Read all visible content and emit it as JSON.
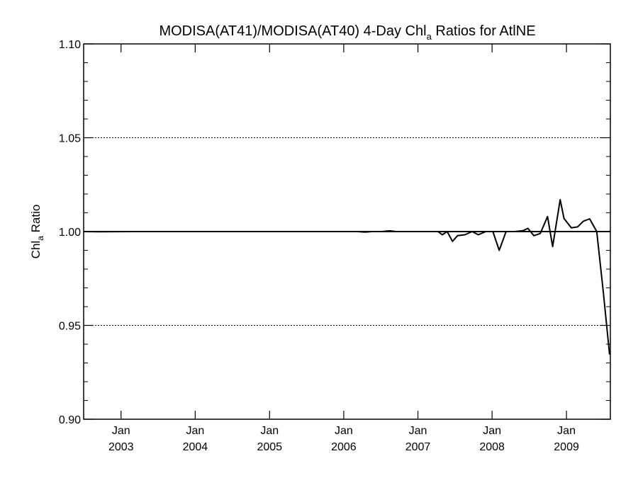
{
  "chart_data": {
    "type": "line",
    "title_main": "MODISA(AT41)/MODISA(AT40) 4-Day Chl",
    "title_sub": "a",
    "title_tail": " Ratios for AtlNE",
    "ylabel_main": "Chl",
    "ylabel_sub": "a",
    "ylabel_tail": " Ratio",
    "xlim": [
      "2002-07-01",
      "2009-08-05"
    ],
    "ylim": [
      0.9,
      1.1
    ],
    "y_ticks": [
      {
        "value": 0.9,
        "label": "0.90"
      },
      {
        "value": 0.95,
        "label": "0.95"
      },
      {
        "value": 1.0,
        "label": "1.00"
      },
      {
        "value": 1.05,
        "label": "1.05"
      },
      {
        "value": 1.1,
        "label": "1.10"
      }
    ],
    "y_minor_step": 0.01,
    "x_ticks": [
      {
        "date": "2003-01-01",
        "month": "Jan",
        "year": "2003"
      },
      {
        "date": "2004-01-01",
        "month": "Jan",
        "year": "2004"
      },
      {
        "date": "2005-01-01",
        "month": "Jan",
        "year": "2005"
      },
      {
        "date": "2006-01-01",
        "month": "Jan",
        "year": "2006"
      },
      {
        "date": "2007-01-01",
        "month": "Jan",
        "year": "2007"
      },
      {
        "date": "2008-01-01",
        "month": "Jan",
        "year": "2008"
      },
      {
        "date": "2009-01-01",
        "month": "Jan",
        "year": "2009"
      }
    ],
    "gridlines": [
      0.95,
      1.05
    ],
    "grid_style": "dotted",
    "reference_line": 1.0,
    "series": [
      {
        "color": "#000000",
        "points": [
          [
            "2002-07-04",
            1.0
          ],
          [
            "2002-09-15",
            0.9999
          ],
          [
            "2003-03-01",
            1.0
          ],
          [
            "2004-01-01",
            1.0
          ],
          [
            "2005-01-01",
            1.0
          ],
          [
            "2006-01-01",
            1.0
          ],
          [
            "2006-03-10",
            1.0
          ],
          [
            "2006-04-15",
            0.9997
          ],
          [
            "2006-05-20",
            1.0
          ],
          [
            "2006-07-10",
            1.0
          ],
          [
            "2006-08-15",
            1.0004
          ],
          [
            "2006-09-15",
            1.0
          ],
          [
            "2007-01-01",
            1.0
          ],
          [
            "2007-04-10",
            1.0
          ],
          [
            "2007-05-01",
            0.9983
          ],
          [
            "2007-05-25",
            1.0
          ],
          [
            "2007-06-20",
            0.9948
          ],
          [
            "2007-07-15",
            0.9978
          ],
          [
            "2007-08-20",
            0.9983
          ],
          [
            "2007-09-25",
            1.0
          ],
          [
            "2007-10-25",
            0.9983
          ],
          [
            "2007-12-01",
            1.0
          ],
          [
            "2008-01-05",
            1.0
          ],
          [
            "2008-02-05",
            0.99
          ],
          [
            "2008-03-10",
            1.0
          ],
          [
            "2008-04-20",
            1.0
          ],
          [
            "2008-06-01",
            1.0005
          ],
          [
            "2008-06-25",
            1.0017
          ],
          [
            "2008-07-25",
            0.9978
          ],
          [
            "2008-08-25",
            0.999
          ],
          [
            "2008-09-30",
            1.008
          ],
          [
            "2008-10-25",
            0.992
          ],
          [
            "2008-12-01",
            1.017
          ],
          [
            "2008-12-20",
            1.007
          ],
          [
            "2009-01-25",
            1.002
          ],
          [
            "2009-02-25",
            1.0025
          ],
          [
            "2009-03-25",
            1.0055
          ],
          [
            "2009-04-25",
            1.0068
          ],
          [
            "2009-05-30",
            1.0
          ],
          [
            "2009-07-01",
            0.968
          ],
          [
            "2009-08-01",
            0.9345
          ]
        ]
      }
    ]
  }
}
